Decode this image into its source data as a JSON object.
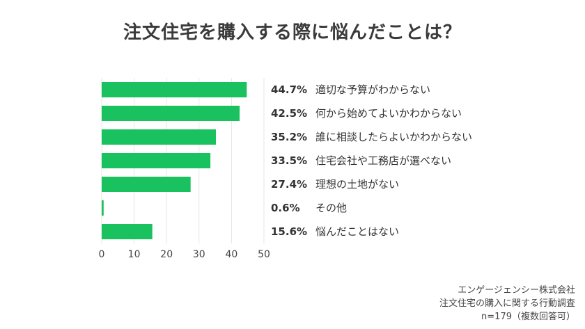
{
  "chart_data": {
    "type": "bar",
    "orientation": "horizontal",
    "title": "注文住宅を購入する際に悩んだことは？",
    "categories": [
      "適切な予算がわからない",
      "何から始めてよいかわからない",
      "誰に相談したらよいかわからない",
      "住宅会社や工務店が選べない",
      "理想の土地がない",
      "その他",
      "悩んだことはない"
    ],
    "values": [
      44.7,
      42.5,
      35.2,
      33.5,
      27.4,
      0.6,
      15.6
    ],
    "value_labels": [
      "44.7%",
      "42.5%",
      "35.2%",
      "33.5%",
      "27.4%",
      "0.6%",
      "15.6%"
    ],
    "x_ticks": [
      0,
      10,
      20,
      30,
      40,
      50
    ],
    "xlim": [
      0,
      50
    ],
    "grid": true,
    "bar_color": "#19c15f",
    "grid_color": "#e6e6e6"
  },
  "source": {
    "line1": "エンゲージェンシー株式会社",
    "line2": "注文住宅の購入に関する行動調査",
    "line3": "n=179（複数回答可）"
  }
}
